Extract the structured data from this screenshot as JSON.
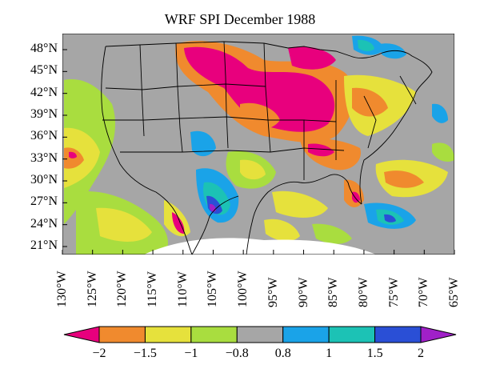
{
  "map": {
    "title": "WRF SPI December 1988",
    "lat_labels": [
      "48°N",
      "45°N",
      "42°N",
      "39°N",
      "36°N",
      "33°N",
      "30°N",
      "27°N",
      "24°N",
      "21°N"
    ],
    "lon_labels": [
      "130°W",
      "125°W",
      "120°W",
      "115°W",
      "110°W",
      "105°W",
      "100°W",
      "95°W",
      "90°W",
      "85°W",
      "80°W",
      "75°W",
      "70°W",
      "65°W"
    ],
    "colors": {
      "le_neg2": "#e8007d",
      "neg2_neg15": "#f08a2e",
      "neg15_neg1": "#e6e13c",
      "neg1_neg08": "#a9dd3f",
      "neutral": "#a6a6a6",
      "p08_1": "#1aa3e8",
      "p1_15": "#1cc2b5",
      "p15_2": "#2a4fd6",
      "ge_2": "#a020c8",
      "boundary": "#000000",
      "nodata": "#ffffff"
    }
  },
  "colorbar": {
    "ticks": [
      "−2",
      "−1.5",
      "−1",
      "−0.8",
      "0.8",
      "1",
      "1.5",
      "2"
    ],
    "colors": [
      "#e8007d",
      "#f08a2e",
      "#e6e13c",
      "#a9dd3f",
      "#a6a6a6",
      "#1aa3e8",
      "#1cc2b5",
      "#2a4fd6",
      "#a020c8"
    ]
  }
}
